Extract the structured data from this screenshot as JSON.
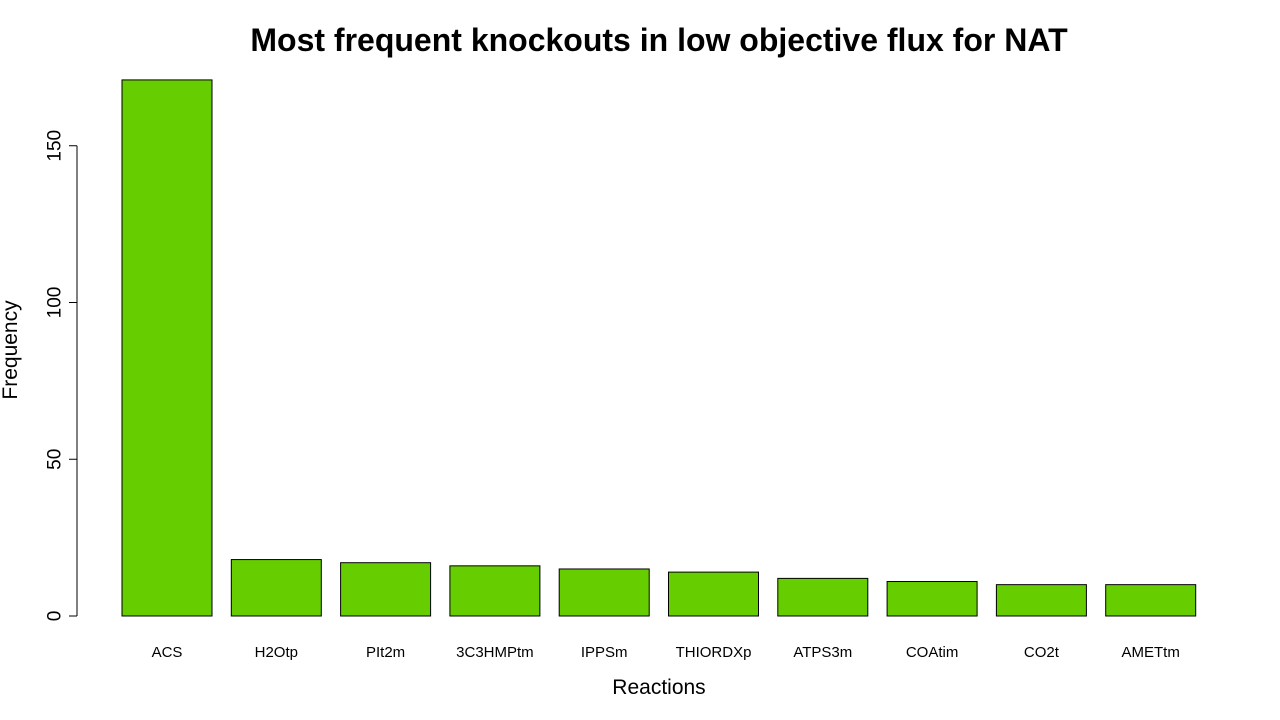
{
  "chart_data": {
    "type": "bar",
    "title": "Most frequent knockouts in low objective flux for NAT",
    "xlabel": "Reactions",
    "ylabel": "Frequency",
    "categories": [
      "ACS",
      "H2Otp",
      "PIt2m",
      "3C3HMPtm",
      "IPPSm",
      "THIORDXp",
      "ATPS3m",
      "COAtim",
      "CO2t",
      "AMETtm"
    ],
    "values": [
      171,
      18,
      17,
      16,
      15,
      14,
      12,
      11,
      10,
      10
    ],
    "yticks": [
      0,
      50,
      100,
      150
    ],
    "ylim": [
      0,
      171
    ],
    "grid": false,
    "bar_color": "#66CD00",
    "bar_border_color": "#000000"
  }
}
